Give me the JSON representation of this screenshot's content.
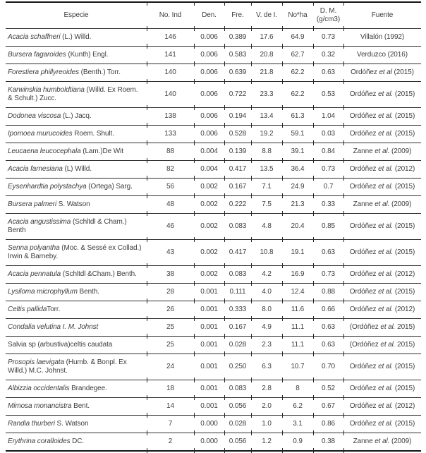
{
  "table": {
    "headers": [
      "Especie",
      "No. Ind",
      "Den.",
      "Fre.",
      "V. de I.",
      "No*ha",
      "D. M.",
      "Fuente"
    ],
    "dm_sub": "(g/cm3)",
    "rows": [
      {
        "especie": [
          {
            "t": "Acacia schaffneri",
            "i": true
          },
          {
            "t": " (L.) Willd.",
            "i": false
          }
        ],
        "no_ind": "146",
        "den": "0.006",
        "fre": "0.389",
        "v_de_i": "17.6",
        "no_ha": "64.9",
        "dm": "0.73",
        "fuente": [
          {
            "t": "Villalón (1992)",
            "i": false
          }
        ]
      },
      {
        "especie": [
          {
            "t": "Bursera fagaroides",
            "i": true
          },
          {
            "t": " (Kunth) Engl.",
            "i": false
          }
        ],
        "no_ind": "141",
        "den": "0.006",
        "fre": "0.583",
        "v_de_i": "20.8",
        "no_ha": "62.7",
        "dm": "0.32",
        "fuente": [
          {
            "t": "Verduzco (2016)",
            "i": false
          }
        ]
      },
      {
        "especie": [
          {
            "t": "Forestiera phillyreoides",
            "i": true
          },
          {
            "t": " (Benth.) Torr.",
            "i": false
          }
        ],
        "no_ind": "140",
        "den": "0.006",
        "fre": "0.639",
        "v_de_i": "21.8",
        "no_ha": "62.2",
        "dm": "0.63",
        "fuente": [
          {
            "t": "Ordóñez ",
            "i": false
          },
          {
            "t": "et al",
            "i": true
          },
          {
            "t": " (2015)",
            "i": false
          }
        ]
      },
      {
        "especie": [
          {
            "t": "Karwinskia humboldtiana",
            "i": true
          },
          {
            "t": " (Willd. Ex Roem. & Schult.) Zucc.",
            "i": false
          }
        ],
        "no_ind": "140",
        "den": "0.006",
        "fre": "0.722",
        "v_de_i": "23.3",
        "no_ha": "62.2",
        "dm": "0.53",
        "fuente": [
          {
            "t": "Ordóñez ",
            "i": false
          },
          {
            "t": "et al.",
            "i": true
          },
          {
            "t": " (2015)",
            "i": false
          }
        ]
      },
      {
        "especie": [
          {
            "t": "Dodonea viscosa",
            "i": true
          },
          {
            "t": " (L.) Jacq.",
            "i": false
          }
        ],
        "no_ind": "138",
        "den": "0.006",
        "fre": "0.194",
        "v_de_i": "13.4",
        "no_ha": "61.3",
        "dm": "1.04",
        "fuente": [
          {
            "t": "Ordóñez ",
            "i": false
          },
          {
            "t": "et al.",
            "i": true
          },
          {
            "t": " (2015)",
            "i": false
          }
        ]
      },
      {
        "especie": [
          {
            "t": "Ipomoea murucoides",
            "i": true
          },
          {
            "t": " Roem. Shult.",
            "i": false
          }
        ],
        "no_ind": "133",
        "den": "0.006",
        "fre": "0.528",
        "v_de_i": "19.2",
        "no_ha": "59.1",
        "dm": "0.03",
        "fuente": [
          {
            "t": "Ordóñez ",
            "i": false
          },
          {
            "t": "et al.",
            "i": true
          },
          {
            "t": " (2015)",
            "i": false
          }
        ]
      },
      {
        "especie": [
          {
            "t": "Leucaena leucocephala",
            "i": true
          },
          {
            "t": " (Lam.)De Wit",
            "i": false
          }
        ],
        "no_ind": "88",
        "den": "0.004",
        "fre": "0.139",
        "v_de_i": "8.8",
        "no_ha": "39.1",
        "dm": "0.84",
        "fuente": [
          {
            "t": "Zanne ",
            "i": false
          },
          {
            "t": "et al.",
            "i": true
          },
          {
            "t": " (2009)",
            "i": false
          }
        ]
      },
      {
        "especie": [
          {
            "t": "Acacia farnesiana",
            "i": true
          },
          {
            "t": " (L) Willd.",
            "i": false
          }
        ],
        "no_ind": "82",
        "den": "0.004",
        "fre": "0.417",
        "v_de_i": "13.5",
        "no_ha": "36.4",
        "dm": "0.73",
        "fuente": [
          {
            "t": "Ordóñez ",
            "i": false
          },
          {
            "t": "et al.",
            "i": true
          },
          {
            "t": " (2012)",
            "i": false
          }
        ]
      },
      {
        "especie": [
          {
            "t": "Eysenhardtia polystachya",
            "i": true
          },
          {
            "t": " (Ortega) Sarg.",
            "i": false
          }
        ],
        "no_ind": "56",
        "den": "0.002",
        "fre": "0.167",
        "v_de_i": "7.1",
        "no_ha": "24.9",
        "dm": "0.7",
        "fuente": [
          {
            "t": "Ordóñez ",
            "i": false
          },
          {
            "t": "et al.",
            "i": true
          },
          {
            "t": " (2015)",
            "i": false
          }
        ]
      },
      {
        "especie": [
          {
            "t": "Bursera palmeri",
            "i": true
          },
          {
            "t": " S. Watson",
            "i": false
          }
        ],
        "no_ind": "48",
        "den": "0.002",
        "fre": "0.222",
        "v_de_i": "7.5",
        "no_ha": "21.3",
        "dm": "0.33",
        "fuente": [
          {
            "t": "Zanne ",
            "i": false
          },
          {
            "t": "et al.",
            "i": true
          },
          {
            "t": " (2009)",
            "i": false
          }
        ]
      },
      {
        "especie": [
          {
            "t": "Acacia angustissima",
            "i": true
          },
          {
            "t": " (Schltdl & Cham.) Benth",
            "i": false
          }
        ],
        "no_ind": "46",
        "den": "0.002",
        "fre": "0.083",
        "v_de_i": "4.8",
        "no_ha": "20.4",
        "dm": "0.85",
        "fuente": [
          {
            "t": "Ordóñez ",
            "i": false
          },
          {
            "t": "et al.",
            "i": true
          },
          {
            "t": " (2015)",
            "i": false
          }
        ]
      },
      {
        "especie": [
          {
            "t": "Senna polyantha",
            "i": true
          },
          {
            "t": " (Moc. & Sessé ex Collad.) Irwin & Barneby.",
            "i": false
          }
        ],
        "no_ind": "43",
        "den": "0.002",
        "fre": "0.417",
        "v_de_i": "10.8",
        "no_ha": "19.1",
        "dm": "0.63",
        "fuente": [
          {
            "t": "Ordóñez ",
            "i": false
          },
          {
            "t": "et al.",
            "i": true
          },
          {
            "t": " (2015)",
            "i": false
          }
        ]
      },
      {
        "especie": [
          {
            "t": "Acacia pennatula",
            "i": true
          },
          {
            "t": " (Schltdl &Cham.) Benth.",
            "i": false
          }
        ],
        "no_ind": "38",
        "den": "0.002",
        "fre": "0.083",
        "v_de_i": "4.2",
        "no_ha": "16.9",
        "dm": "0.73",
        "fuente": [
          {
            "t": "Ordóñez ",
            "i": false
          },
          {
            "t": "et al.",
            "i": true
          },
          {
            "t": " (2012)",
            "i": false
          }
        ]
      },
      {
        "especie": [
          {
            "t": "Lysiloma microphyllum",
            "i": true
          },
          {
            "t": " Benth.",
            "i": false
          }
        ],
        "no_ind": "28",
        "den": "0.001",
        "fre": "0.111",
        "v_de_i": "4.0",
        "no_ha": "12.4",
        "dm": "0.88",
        "fuente": [
          {
            "t": "Ordóñez ",
            "i": false
          },
          {
            "t": "et al.",
            "i": true
          },
          {
            "t": " (2015)",
            "i": false
          }
        ]
      },
      {
        "especie": [
          {
            "t": "Celtis pallida",
            "i": true
          },
          {
            "t": "Torr.",
            "i": false
          }
        ],
        "no_ind": "26",
        "den": "0.001",
        "fre": "0.333",
        "v_de_i": "8.0",
        "no_ha": "11.6",
        "dm": "0.66",
        "fuente": [
          {
            "t": "Ordóñez ",
            "i": false
          },
          {
            "t": "et al.",
            "i": true
          },
          {
            "t": " (2012)",
            "i": false
          }
        ]
      },
      {
        "especie": [
          {
            "t": "Condalia velutina I. M. Johnst",
            "i": true
          }
        ],
        "no_ind": "25",
        "den": "0.001",
        "fre": "0.167",
        "v_de_i": "4.9",
        "no_ha": "11.1",
        "dm": "0.63",
        "fuente": [
          {
            "t": "(Ordóñez ",
            "i": false
          },
          {
            "t": "et al.",
            "i": true
          },
          {
            "t": " 2015)",
            "i": false
          }
        ]
      },
      {
        "especie": [
          {
            "t": "Salvia sp (arbustiva)celtis caudata",
            "i": false
          }
        ],
        "no_ind": "25",
        "den": "0.001",
        "fre": "0.028",
        "v_de_i": "2.3",
        "no_ha": "11.1",
        "dm": "0.63",
        "fuente": [
          {
            "t": "(Ordóñez ",
            "i": false
          },
          {
            "t": "et al.",
            "i": true
          },
          {
            "t": " 2015)",
            "i": false
          }
        ]
      },
      {
        "especie": [
          {
            "t": "Prosopis laevigata",
            "i": true
          },
          {
            "t": " (Humb. & Bonpl. Ex Willd.) M.C. Johnst.",
            "i": false
          }
        ],
        "no_ind": "24",
        "den": "0.001",
        "fre": "0.250",
        "v_de_i": "6.3",
        "no_ha": "10.7",
        "dm": "0.70",
        "fuente": [
          {
            "t": "Ordóñez ",
            "i": false
          },
          {
            "t": "et al.",
            "i": true
          },
          {
            "t": " (2015)",
            "i": false
          }
        ]
      },
      {
        "especie": [
          {
            "t": "Albizzia occidentalis",
            "i": true
          },
          {
            "t": " Brandegee.",
            "i": false
          }
        ],
        "no_ind": "18",
        "den": "0.001",
        "fre": "0.083",
        "v_de_i": "2.8",
        "no_ha": "8",
        "dm": "0.52",
        "fuente": [
          {
            "t": "Ordóñez ",
            "i": false
          },
          {
            "t": "et al.",
            "i": true
          },
          {
            "t": " (2015)",
            "i": false
          }
        ]
      },
      {
        "especie": [
          {
            "t": "Mimosa monancistra",
            "i": true
          },
          {
            "t": " Bent.",
            "i": false
          }
        ],
        "no_ind": "14",
        "den": "0.001",
        "fre": "0.056",
        "v_de_i": "2.0",
        "no_ha": "6.2",
        "dm": "0.67",
        "fuente": [
          {
            "t": "Ordóñez ",
            "i": false
          },
          {
            "t": "et al.",
            "i": true
          },
          {
            "t": " (2012)",
            "i": false
          }
        ]
      },
      {
        "especie": [
          {
            "t": "Randia thurberi",
            "i": true
          },
          {
            "t": " S. Watson",
            "i": false
          }
        ],
        "no_ind": "7",
        "den": "0.000",
        "fre": "0.028",
        "v_de_i": "1.0",
        "no_ha": "3.1",
        "dm": "0.86",
        "fuente": [
          {
            "t": "Ordóñez ",
            "i": false
          },
          {
            "t": "et al.",
            "i": true
          },
          {
            "t": " (2015)",
            "i": false
          }
        ]
      },
      {
        "especie": [
          {
            "t": "Erythrina coralloides",
            "i": true
          },
          {
            "t": " DC.",
            "i": false
          }
        ],
        "no_ind": "2",
        "den": "0.000",
        "fre": "0.056",
        "v_de_i": "1.2",
        "no_ha": "0.9",
        "dm": "0.38",
        "fuente": [
          {
            "t": "Zanne ",
            "i": false
          },
          {
            "t": "et al.",
            "i": true
          },
          {
            "t": " (2009)",
            "i": false
          }
        ]
      }
    ]
  }
}
